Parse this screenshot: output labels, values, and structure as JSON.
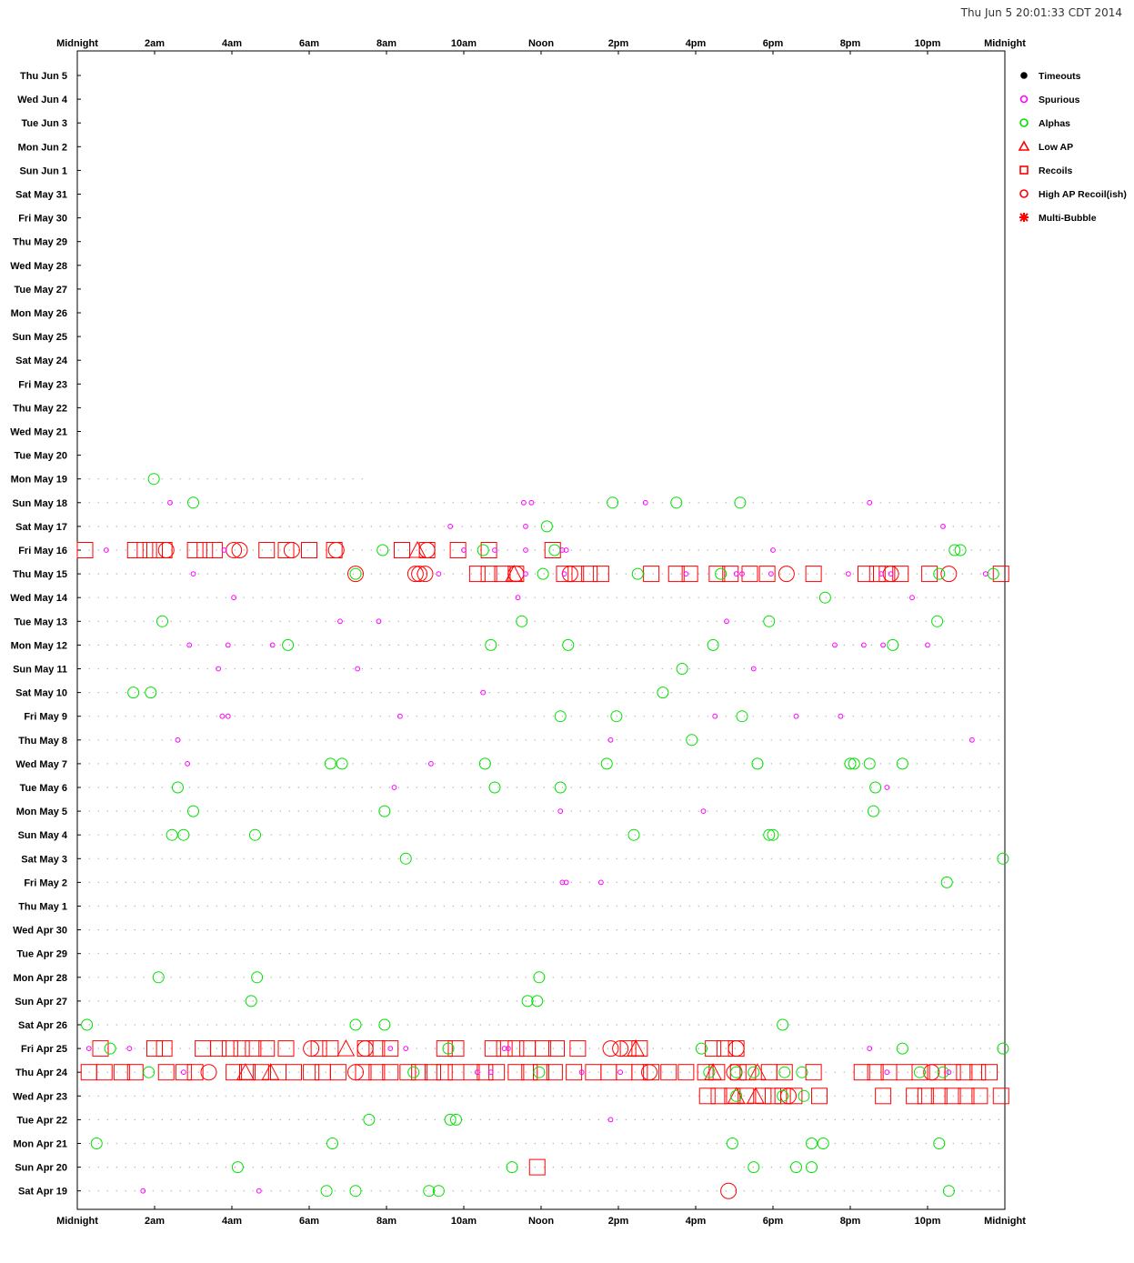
{
  "timestamp": "Thu Jun  5 20:01:33 CDT 2014",
  "colors": {
    "timeouts": "#000000",
    "spurious": "#ff00ff",
    "alphas": "#00e000",
    "low_ap": "#ff0000",
    "recoils": "#ff0000",
    "high_ap": "#ff0000",
    "multi": "#ff0000",
    "dots": "#9a9a9a",
    "frame": "#000000"
  },
  "chart_data": {
    "type": "scatter",
    "x_axis": {
      "range_hours": [
        0,
        24
      ],
      "ticks": [
        {
          "hour": 0,
          "label": "Midnight"
        },
        {
          "hour": 2,
          "label": "2am"
        },
        {
          "hour": 4,
          "label": "4am"
        },
        {
          "hour": 6,
          "label": "6am"
        },
        {
          "hour": 8,
          "label": "8am"
        },
        {
          "hour": 10,
          "label": "10am"
        },
        {
          "hour": 12,
          "label": "Noon"
        },
        {
          "hour": 14,
          "label": "2pm"
        },
        {
          "hour": 16,
          "label": "4pm"
        },
        {
          "hour": 18,
          "label": "6pm"
        },
        {
          "hour": 20,
          "label": "8pm"
        },
        {
          "hour": 22,
          "label": "10pm"
        },
        {
          "hour": 24,
          "label": "Midnight"
        }
      ]
    },
    "days": [
      "Thu Jun  5",
      "Wed Jun  4",
      "Tue Jun  3",
      "Mon Jun  2",
      "Sun Jun  1",
      "Sat May 31",
      "Fri May 30",
      "Thu May 29",
      "Wed May 28",
      "Tue May 27",
      "Mon May 26",
      "Sun May 25",
      "Sat May 24",
      "Fri May 23",
      "Thu May 22",
      "Wed May 21",
      "Tue May 20",
      "Mon May 19",
      "Sun May 18",
      "Sat May 17",
      "Fri May 16",
      "Thu May 15",
      "Wed May 14",
      "Tue May 13",
      "Mon May 12",
      "Sun May 11",
      "Sat May 10",
      "Fri May  9",
      "Thu May  8",
      "Wed May  7",
      "Tue May  6",
      "Mon May  5",
      "Sun May  4",
      "Sat May  3",
      "Fri May  2",
      "Thu May  1",
      "Wed Apr 30",
      "Tue Apr 29",
      "Mon Apr 28",
      "Sun Apr 27",
      "Sat Apr 26",
      "Fri Apr 25",
      "Thu Apr 24",
      "Wed Apr 23",
      "Tue Apr 22",
      "Mon Apr 21",
      "Sun Apr 20",
      "Sat Apr 19"
    ],
    "legend": [
      {
        "key": "timeouts",
        "label": "Timeouts",
        "marker": "filled-circle"
      },
      {
        "key": "spurious",
        "label": "Spurious",
        "marker": "small-circle"
      },
      {
        "key": "alphas",
        "label": "Alphas",
        "marker": "circle"
      },
      {
        "key": "low_ap",
        "label": "Low AP",
        "marker": "triangle"
      },
      {
        "key": "recoils",
        "label": "Recoils",
        "marker": "square"
      },
      {
        "key": "high_ap",
        "label": "High AP Recoil(ish)",
        "marker": "circle"
      },
      {
        "key": "multi",
        "label": "Multi-Bubble",
        "marker": "star"
      }
    ],
    "coverage": [
      {
        "day": "Mon May 19",
        "start": 0.3,
        "end": 7.5
      },
      {
        "day": "Sun May 18",
        "start": 0.3,
        "end": 24
      },
      {
        "day": "Sat May 17",
        "start": 0.3,
        "end": 24
      },
      {
        "day": "Fri May 16",
        "start": 0.3,
        "end": 24
      },
      {
        "day": "Thu May 15",
        "start": 0.3,
        "end": 24
      },
      {
        "day": "Wed May 14",
        "start": 0.3,
        "end": 24
      },
      {
        "day": "Tue May 13",
        "start": 0.3,
        "end": 24
      },
      {
        "day": "Mon May 12",
        "start": 0.3,
        "end": 24
      },
      {
        "day": "Sun May 11",
        "start": 0.3,
        "end": 24
      },
      {
        "day": "Sat May 10",
        "start": 0.3,
        "end": 24
      },
      {
        "day": "Fri May  9",
        "start": 0.3,
        "end": 24
      },
      {
        "day": "Thu May  8",
        "start": 0.3,
        "end": 24
      },
      {
        "day": "Wed May  7",
        "start": 0.3,
        "end": 24
      },
      {
        "day": "Tue May  6",
        "start": 0.3,
        "end": 24
      },
      {
        "day": "Mon May  5",
        "start": 0.3,
        "end": 24
      },
      {
        "day": "Sun May  4",
        "start": 0.3,
        "end": 24
      },
      {
        "day": "Sat May  3",
        "start": 0.3,
        "end": 24
      },
      {
        "day": "Fri May  2",
        "start": 0.3,
        "end": 24
      },
      {
        "day": "Thu May  1",
        "start": 0.3,
        "end": 24
      },
      {
        "day": "Wed Apr 30",
        "start": 0.3,
        "end": 24
      },
      {
        "day": "Tue Apr 29",
        "start": 0.3,
        "end": 24
      },
      {
        "day": "Mon Apr 28",
        "start": 0.3,
        "end": 24
      },
      {
        "day": "Sun Apr 27",
        "start": 0.3,
        "end": 24
      },
      {
        "day": "Sat Apr 26",
        "start": 0.3,
        "end": 24
      },
      {
        "day": "Fri Apr 25",
        "start": 0.3,
        "end": 24
      },
      {
        "day": "Thu Apr 24",
        "start": 0.3,
        "end": 24
      },
      {
        "day": "Wed Apr 23",
        "start": 0.3,
        "end": 24
      },
      {
        "day": "Tue Apr 22",
        "start": 0.3,
        "end": 24
      },
      {
        "day": "Mon Apr 21",
        "start": 0.3,
        "end": 24
      },
      {
        "day": "Sun Apr 20",
        "start": 0.3,
        "end": 24
      },
      {
        "day": "Sat Apr 19",
        "start": 0.3,
        "end": 24
      }
    ],
    "events": [
      {
        "day": "Mon May 19",
        "type": "alpha",
        "hours": [
          1.98
        ]
      },
      {
        "day": "Sun May 18",
        "type": "spurious",
        "hours": [
          2.4,
          11.55,
          11.75,
          14.7,
          20.5
        ]
      },
      {
        "day": "Sun May 18",
        "type": "alpha",
        "hours": [
          3.0,
          13.85,
          15.5,
          17.15
        ]
      },
      {
        "day": "Sat May 17",
        "type": "spurious",
        "hours": [
          9.65,
          11.6,
          22.4
        ]
      },
      {
        "day": "Sat May 17",
        "type": "alpha",
        "hours": [
          12.15
        ]
      },
      {
        "day": "Fri May 16",
        "type": "recoil",
        "hours": [
          0.2,
          1.5,
          1.75,
          2.0,
          2.25,
          3.05,
          3.3,
          3.55,
          4.9,
          5.4,
          6.0,
          6.65,
          8.4,
          9.05,
          9.85,
          10.65,
          12.3
        ]
      },
      {
        "day": "Fri May 16",
        "type": "high_ap",
        "hours": [
          2.3,
          4.05,
          4.2,
          5.55,
          6.7,
          9.05
        ]
      },
      {
        "day": "Fri May 16",
        "type": "low_ap",
        "hours": [
          8.8
        ]
      },
      {
        "day": "Fri May 16",
        "type": "alpha",
        "hours": [
          7.9,
          10.5,
          12.35,
          22.7,
          22.85
        ]
      },
      {
        "day": "Fri May 16",
        "type": "spurious",
        "hours": [
          0.75,
          3.8,
          10.0,
          10.8,
          11.6,
          12.55,
          12.65,
          18.0
        ]
      },
      {
        "day": "Thu May 15",
        "type": "recoil",
        "hours": [
          10.35,
          10.65,
          11.0,
          11.35,
          12.6,
          12.9,
          13.25,
          13.55,
          14.85,
          15.5,
          15.85,
          16.55,
          16.9,
          17.4,
          17.85,
          19.05,
          20.4,
          20.7,
          20.95,
          21.3,
          22.05,
          23.9
        ]
      },
      {
        "day": "Thu May 15",
        "type": "high_ap",
        "hours": [
          7.2,
          8.75,
          8.85,
          9.0,
          11.35,
          12.75,
          18.35,
          21.05,
          22.55
        ]
      },
      {
        "day": "Thu May 15",
        "type": "low_ap",
        "hours": [
          11.3
        ]
      },
      {
        "day": "Thu May 15",
        "type": "alpha",
        "hours": [
          7.2,
          12.05,
          14.5,
          16.65,
          22.3,
          23.7
        ]
      },
      {
        "day": "Thu May 15",
        "type": "spurious",
        "hours": [
          3.0,
          9.35,
          11.6,
          12.6,
          15.75,
          17.05,
          17.2,
          17.95,
          19.95,
          20.8,
          21.05,
          23.5
        ]
      },
      {
        "day": "Wed May 14",
        "type": "spurious",
        "hours": [
          4.05,
          11.4,
          21.6
        ]
      },
      {
        "day": "Wed May 14",
        "type": "alpha",
        "hours": [
          19.35
        ]
      },
      {
        "day": "Tue May 13",
        "type": "spurious",
        "hours": [
          6.8,
          7.8,
          16.8
        ]
      },
      {
        "day": "Tue May 13",
        "type": "alpha",
        "hours": [
          2.2,
          11.5,
          17.9,
          22.25
        ]
      },
      {
        "day": "Mon May 12",
        "type": "spurious",
        "hours": [
          2.9,
          3.9,
          5.05,
          19.6,
          20.35,
          20.85,
          22.0
        ]
      },
      {
        "day": "Mon May 12",
        "type": "alpha",
        "hours": [
          5.45,
          10.7,
          12.7,
          16.45,
          21.1
        ]
      },
      {
        "day": "Sun May 11",
        "type": "spurious",
        "hours": [
          3.65,
          7.25,
          17.5
        ]
      },
      {
        "day": "Sun May 11",
        "type": "alpha",
        "hours": [
          15.65
        ]
      },
      {
        "day": "Sat May 10",
        "type": "spurious",
        "hours": [
          10.5
        ]
      },
      {
        "day": "Sat May 10",
        "type": "alpha",
        "hours": [
          1.45,
          1.9,
          15.15
        ]
      },
      {
        "day": "Fri May  9",
        "type": "spurious",
        "hours": [
          3.75,
          3.9,
          8.35,
          16.5,
          18.6,
          19.75
        ]
      },
      {
        "day": "Fri May  9",
        "type": "alpha",
        "hours": [
          12.5,
          13.95,
          17.2
        ]
      },
      {
        "day": "Thu May  8",
        "type": "spurious",
        "hours": [
          2.6,
          13.8,
          23.15
        ]
      },
      {
        "day": "Thu May  8",
        "type": "alpha",
        "hours": [
          15.9
        ]
      },
      {
        "day": "Wed May  7",
        "type": "spurious",
        "hours": [
          2.85,
          9.15
        ]
      },
      {
        "day": "Wed May  7",
        "type": "alpha",
        "hours": [
          6.55,
          6.85,
          10.55,
          13.7,
          17.6,
          20.0,
          20.1,
          20.5,
          21.35
        ]
      },
      {
        "day": "Tue May  6",
        "type": "spurious",
        "hours": [
          8.2,
          20.95
        ]
      },
      {
        "day": "Tue May  6",
        "type": "alpha",
        "hours": [
          2.6,
          10.8,
          12.5,
          20.65
        ]
      },
      {
        "day": "Mon May  5",
        "type": "spurious",
        "hours": [
          12.5,
          16.2
        ]
      },
      {
        "day": "Mon May  5",
        "type": "alpha",
        "hours": [
          3.0,
          7.95,
          20.6
        ]
      },
      {
        "day": "Sun May  4",
        "type": "alpha",
        "hours": [
          2.45,
          2.75,
          4.6,
          14.4,
          17.9,
          18.0
        ]
      },
      {
        "day": "Sat May  3",
        "type": "alpha",
        "hours": [
          8.5,
          23.95
        ]
      },
      {
        "day": "Fri May  2",
        "type": "spurious",
        "hours": [
          12.55,
          12.65,
          13.55
        ]
      },
      {
        "day": "Fri May  2",
        "type": "alpha",
        "hours": [
          22.5
        ]
      },
      {
        "day": "Mon Apr 28",
        "type": "alpha",
        "hours": [
          2.1,
          4.65,
          11.95
        ]
      },
      {
        "day": "Sun Apr 27",
        "type": "alpha",
        "hours": [
          4.5,
          11.65,
          11.9
        ]
      },
      {
        "day": "Sat Apr 26",
        "type": "alpha",
        "hours": [
          0.25,
          7.2,
          7.95,
          18.25
        ]
      },
      {
        "day": "Fri Apr 25",
        "type": "recoil",
        "hours": [
          0.6,
          2.0,
          2.25,
          3.25,
          3.65,
          3.95,
          4.25,
          4.55,
          4.9,
          5.4,
          6.25,
          6.55,
          7.45,
          7.75,
          8.1,
          9.5,
          9.8,
          10.75,
          11.05,
          11.35,
          11.65,
          12.05,
          12.4,
          12.95,
          14.25,
          14.55,
          16.45,
          16.75,
          17.05
        ]
      },
      {
        "day": "Fri Apr 25",
        "type": "high_ap",
        "hours": [
          6.05,
          7.45,
          13.8,
          14.05,
          17.05
        ]
      },
      {
        "day": "Fri Apr 25",
        "type": "low_ap",
        "hours": [
          6.95,
          14.45
        ]
      },
      {
        "day": "Fri Apr 25",
        "type": "alpha",
        "hours": [
          0.85,
          9.6,
          16.15,
          21.35,
          23.95
        ]
      },
      {
        "day": "Fri Apr 25",
        "type": "spurious",
        "hours": [
          0.3,
          1.35,
          8.1,
          8.5,
          11.05,
          11.15,
          20.5
        ]
      },
      {
        "day": "Thu Apr 24",
        "type": "recoil",
        "hours": [
          0.3,
          0.7,
          1.15,
          1.5,
          2.3,
          2.75,
          3.05,
          4.05,
          4.4,
          4.75,
          5.2,
          5.6,
          6.05,
          6.35,
          6.75,
          7.4,
          7.75,
          8.1,
          8.55,
          8.85,
          9.2,
          9.5,
          9.8,
          10.2,
          10.55,
          10.85,
          11.35,
          11.7,
          12.0,
          12.35,
          12.85,
          13.35,
          13.75,
          14.15,
          14.55,
          14.85,
          15.3,
          15.75,
          16.25,
          16.55,
          17.1,
          17.35,
          17.9,
          18.3,
          19.05,
          20.3,
          20.65,
          21.0,
          21.4,
          21.8,
          22.25,
          22.65,
          22.95,
          23.3,
          23.6
        ]
      },
      {
        "day": "Thu Apr 24",
        "type": "high_ap",
        "hours": [
          3.4,
          7.2,
          14.8,
          17.0,
          22.1
        ]
      },
      {
        "day": "Thu Apr 24",
        "type": "low_ap",
        "hours": [
          4.35,
          5.0,
          16.45,
          17.6
        ]
      },
      {
        "day": "Thu Apr 24",
        "type": "alpha",
        "hours": [
          1.85,
          8.7,
          11.95,
          16.35,
          17.05,
          17.5,
          18.3,
          18.75,
          21.8,
          22.4
        ]
      },
      {
        "day": "Thu Apr 24",
        "type": "spurious",
        "hours": [
          2.75,
          10.35,
          10.7,
          13.05,
          14.05,
          20.95,
          22.55
        ]
      },
      {
        "day": "Wed Apr 23",
        "type": "recoil",
        "hours": [
          16.3,
          16.6,
          16.95,
          17.3,
          17.75,
          18.0,
          18.25,
          18.55,
          19.2,
          20.85,
          21.65,
          21.95,
          22.3,
          22.65,
          23.0,
          23.35,
          23.9
        ]
      },
      {
        "day": "Wed Apr 23",
        "type": "low_ap",
        "hours": [
          17.05,
          17.55
        ]
      },
      {
        "day": "Wed Apr 23",
        "type": "high_ap",
        "hours": [
          18.4
        ]
      },
      {
        "day": "Wed Apr 23",
        "type": "alpha",
        "hours": [
          17.05,
          18.25,
          18.8
        ]
      },
      {
        "day": "Tue Apr 22",
        "type": "alpha",
        "hours": [
          7.55,
          9.65,
          9.8
        ]
      },
      {
        "day": "Tue Apr 22",
        "type": "spurious",
        "hours": [
          13.8
        ]
      },
      {
        "day": "Mon Apr 21",
        "type": "alpha",
        "hours": [
          0.5,
          6.6,
          16.95,
          19.0,
          19.3,
          22.3
        ]
      },
      {
        "day": "Sun Apr 20",
        "type": "alpha",
        "hours": [
          4.15,
          11.25,
          17.5,
          18.6,
          19.0
        ]
      },
      {
        "day": "Sun Apr 20",
        "type": "recoil",
        "hours": [
          11.9
        ]
      },
      {
        "day": "Sat Apr 19",
        "type": "spurious",
        "hours": [
          1.7,
          4.7
        ]
      },
      {
        "day": "Sat Apr 19",
        "type": "alpha",
        "hours": [
          6.45,
          7.2,
          9.1,
          9.35,
          22.55
        ]
      },
      {
        "day": "Sat Apr 19",
        "type": "high_ap",
        "hours": [
          16.85
        ]
      }
    ]
  }
}
